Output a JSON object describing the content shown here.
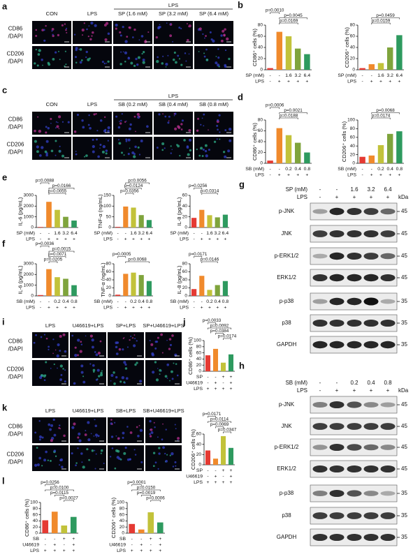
{
  "panel_labels": [
    "a",
    "b",
    "c",
    "d",
    "e",
    "f",
    "g",
    "h",
    "i",
    "j",
    "k",
    "l"
  ],
  "microscopy": [
    {
      "group": "LPS",
      "columns": [
        "CON",
        "LPS",
        "SP (1.6 mM)",
        "SP (3.2 mM)",
        "SP (6.4 mM)"
      ],
      "rows": [
        [
          "CD86",
          "/DAPI"
        ],
        [
          "CD206",
          "/DAPI"
        ]
      ]
    },
    {
      "group": "LPS",
      "columns": [
        "CON",
        "LPS",
        "SB (0.2 mM)",
        "SB (0.4 mM)",
        "SB (0.8 mM)"
      ],
      "rows": [
        [
          "CD86",
          "/DAPI"
        ],
        [
          "CD206",
          "/DAPI"
        ]
      ]
    },
    {
      "columns": [
        "LPS",
        "U46619+LPS",
        "SP+LPS",
        "SP+U46619+LPS"
      ],
      "rows": [
        [
          "CD86",
          "/DAPI"
        ],
        [
          "CD206",
          "/DAPI"
        ]
      ]
    },
    {
      "columns": [
        "LPS",
        "U46619+LPS",
        "SB+LPS",
        "SB+U46619+LPS"
      ],
      "rows": [
        [
          "CD86",
          "/DAPI"
        ],
        [
          "CD206",
          "/DAPI"
        ]
      ]
    }
  ],
  "blots": [
    {
      "treatments": [
        {
          "label": "SP (mM)",
          "values": [
            "-",
            "-",
            "1.6",
            "3.2",
            "6.4"
          ]
        },
        {
          "label": "LPS",
          "values": [
            "-",
            "+",
            "+",
            "+",
            "+"
          ]
        }
      ],
      "unit": "kDa",
      "rows": [
        {
          "label": "p-JNK",
          "marker": 45
        },
        {
          "label": "JNK",
          "marker": 45
        },
        {
          "label": "p-ERK1/2",
          "marker": 45
        },
        {
          "label": "ERK1/2",
          "marker": 45
        },
        {
          "label": "p-p38",
          "marker": 35
        },
        {
          "label": "p38",
          "marker": 35
        },
        {
          "label": "GAPDH",
          "marker": 35
        }
      ]
    },
    {
      "treatments": [
        {
          "label": "SB (mM)",
          "values": [
            "-",
            "-",
            "0.2",
            "0.4",
            "0.8"
          ]
        },
        {
          "label": "LPS",
          "values": [
            "-",
            "+",
            "+",
            "+",
            "+"
          ]
        }
      ],
      "unit": "kDa",
      "rows": [
        {
          "label": "p-JNK",
          "marker": 45
        },
        {
          "label": "JNK",
          "marker": 45
        },
        {
          "label": "p-ERK1/2",
          "marker": 45
        },
        {
          "label": "ERK1/2",
          "marker": 45
        },
        {
          "label": "p-p38",
          "marker": 35
        },
        {
          "label": "p38",
          "marker": 35
        },
        {
          "label": "GAPDH",
          "marker": 35
        }
      ]
    }
  ],
  "chart_data": [
    {
      "type": "bar",
      "ylabel": "CD86⁺ cells (%)",
      "ylim": [
        0,
        80
      ],
      "yticks": [
        0,
        20,
        40,
        60,
        80
      ],
      "values": [
        3,
        68,
        60,
        38,
        28
      ],
      "colors": [
        "#e53a33",
        "#f08a2c",
        "#c2c23a",
        "#7fa43c",
        "#2e9a5f"
      ],
      "treatments": [
        {
          "label": "SP (mM)",
          "values": [
            "-",
            "-",
            "1.6",
            "3.2",
            "6.4"
          ]
        },
        {
          "label": "LPS",
          "values": [
            "-",
            "+",
            "+",
            "+",
            "+"
          ]
        }
      ],
      "annotations": [
        "p=0.0010",
        "p=0.0045",
        "p=0.0169"
      ]
    },
    {
      "type": "bar",
      "ylabel": "CD206⁺ cells (%)",
      "ylim": [
        0,
        80
      ],
      "yticks": [
        0,
        20,
        40,
        60,
        80
      ],
      "values": [
        3,
        10,
        12,
        40,
        62
      ],
      "colors": [
        "#e53a33",
        "#f08a2c",
        "#c2c23a",
        "#7fa43c",
        "#2e9a5f"
      ],
      "treatments": [
        {
          "label": "SP (mM)",
          "values": [
            "-",
            "-",
            "1.6",
            "3.2",
            "6.4"
          ]
        },
        {
          "label": "LPS",
          "values": [
            "-",
            "+",
            "+",
            "+",
            "+"
          ]
        }
      ],
      "annotations": [
        "p=0.0459",
        "p=0.0159"
      ]
    },
    {
      "type": "bar",
      "ylabel": "CD86⁺ cells (%)",
      "ylim": [
        0,
        80
      ],
      "yticks": [
        0,
        20,
        40,
        60,
        80
      ],
      "values": [
        5,
        65,
        52,
        38,
        20
      ],
      "colors": [
        "#e53a33",
        "#f08a2c",
        "#c2c23a",
        "#7fa43c",
        "#2e9a5f"
      ],
      "treatments": [
        {
          "label": "SB (mM)",
          "values": [
            "-",
            "-",
            "0.2",
            "0.4",
            "0.8"
          ]
        },
        {
          "label": "LPS",
          "values": [
            "-",
            "+",
            "+",
            "+",
            "+"
          ]
        }
      ],
      "annotations": [
        "p=0.0006",
        "p=0.0021",
        "p=0.0188"
      ]
    },
    {
      "type": "bar",
      "ylabel": "CD206⁺ cells (%)",
      "ylim": [
        0,
        100
      ],
      "yticks": [
        0,
        20,
        40,
        60,
        80,
        100
      ],
      "values": [
        15,
        18,
        42,
        68,
        74
      ],
      "colors": [
        "#e53a33",
        "#f08a2c",
        "#c2c23a",
        "#7fa43c",
        "#2e9a5f"
      ],
      "treatments": [
        {
          "label": "SB (mM)",
          "values": [
            "-",
            "-",
            "0.2",
            "0.4",
            "0.8"
          ]
        },
        {
          "label": "LPS",
          "values": [
            "-",
            "+",
            "+",
            "+",
            "+"
          ]
        }
      ],
      "annotations": [
        "p=0.0068",
        "p=0.0174"
      ]
    },
    {
      "type": "bar",
      "ylabel": "IL-6 (pg/mL)",
      "ylim": [
        0,
        3000
      ],
      "yticks": [
        0,
        1000,
        2000,
        3000
      ],
      "values": [
        50,
        2400,
        1650,
        1000,
        650
      ],
      "colors": [
        "#e53a33",
        "#f08a2c",
        "#c2c23a",
        "#7fa43c",
        "#2e9a5f"
      ],
      "treatments": [
        {
          "label": "SP (mM)",
          "values": [
            "-",
            "-",
            "1.6",
            "3.2",
            "6.4"
          ]
        },
        {
          "label": "LPS",
          "values": [
            "-",
            "+",
            "+",
            "+",
            "+"
          ]
        }
      ],
      "annotations": [
        "p=0.0088",
        "p=0.0166",
        "p=0.0055"
      ]
    },
    {
      "type": "bar",
      "ylabel": "TNF-α (ng/mL)",
      "ylim": [
        0,
        150
      ],
      "yticks": [
        0,
        50,
        100,
        150
      ],
      "values": [
        3,
        98,
        93,
        58,
        35
      ],
      "colors": [
        "#e53a33",
        "#f08a2c",
        "#c2c23a",
        "#7fa43c",
        "#2e9a5f"
      ],
      "treatments": [
        {
          "label": "SP (mM)",
          "values": [
            "-",
            "-",
            "1.6",
            "3.2",
            "6.4"
          ]
        },
        {
          "label": "LPS",
          "values": [
            "-",
            "+",
            "+",
            "+",
            "+"
          ]
        }
      ],
      "annotations": [
        "p=0.0056",
        "p=0.0124",
        "p=0.0356"
      ]
    },
    {
      "type": "bar",
      "ylabel": "IL-8 (pg/mL)",
      "ylim": [
        0,
        60
      ],
      "yticks": [
        0,
        20,
        40,
        60
      ],
      "values": [
        18,
        33,
        23,
        19,
        24
      ],
      "colors": [
        "#e53a33",
        "#f08a2c",
        "#c2c23a",
        "#7fa43c",
        "#2e9a5f"
      ],
      "treatments": [
        {
          "label": "SP (mM)",
          "values": [
            "-",
            "-",
            "1.6",
            "3.2",
            "6.4"
          ]
        },
        {
          "label": "LPS",
          "values": [
            "-",
            "+",
            "+",
            "+",
            "+"
          ]
        }
      ],
      "annotations": [
        "p=0.0256",
        "p=0.0314"
      ]
    },
    {
      "type": "bar",
      "ylabel": "IL-6 (pg/mL)",
      "ylim": [
        0,
        3000
      ],
      "yticks": [
        0,
        1000,
        2000,
        3000
      ],
      "values": [
        80,
        2500,
        1750,
        1600,
        1000
      ],
      "colors": [
        "#e53a33",
        "#f08a2c",
        "#c2c23a",
        "#7fa43c",
        "#2e9a5f"
      ],
      "treatments": [
        {
          "label": "SB (mM)",
          "values": [
            "-",
            "-",
            "0.2",
            "0.4",
            "0.8"
          ]
        },
        {
          "label": "LPS",
          "values": [
            "-",
            "+",
            "+",
            "+",
            "+"
          ]
        }
      ],
      "annotations": [
        "p=0.0036",
        "p=0.0015",
        "p=0.0071",
        "p=0.0205"
      ]
    },
    {
      "type": "bar",
      "ylabel": "TNF-α (ng/mL)",
      "ylim": [
        0,
        80
      ],
      "yticks": [
        0,
        20,
        40,
        60,
        80
      ],
      "values": [
        3,
        55,
        58,
        52,
        37
      ],
      "colors": [
        "#e53a33",
        "#f08a2c",
        "#c2c23a",
        "#7fa43c",
        "#2e9a5f"
      ],
      "treatments": [
        {
          "label": "SB (mM)",
          "values": [
            "-",
            "-",
            "0.2",
            "0.4",
            "0.8"
          ]
        },
        {
          "label": "LPS",
          "values": [
            "-",
            "+",
            "+",
            "+",
            "+"
          ]
        }
      ],
      "annotations": [
        "p=0.0005",
        "p=0.0068"
      ]
    },
    {
      "type": "bar",
      "ylabel": "IL-8 (pg/mL)",
      "ylim": [
        0,
        80
      ],
      "yticks": [
        0,
        20,
        40,
        60,
        80
      ],
      "values": [
        17,
        50,
        15,
        27,
        37
      ],
      "colors": [
        "#e53a33",
        "#f08a2c",
        "#c2c23a",
        "#7fa43c",
        "#2e9a5f"
      ],
      "treatments": [
        {
          "label": "SB (mM)",
          "values": [
            "-",
            "-",
            "0.2",
            "0.4",
            "0.8"
          ]
        },
        {
          "label": "LPS",
          "values": [
            "-",
            "+",
            "+",
            "+",
            "+"
          ]
        }
      ],
      "annotations": [
        "p=0.0171",
        "p=0.0146"
      ]
    },
    {
      "type": "bar",
      "ylabel": "CD86⁺ cells (%)",
      "ylim": [
        0,
        100
      ],
      "yticks": [
        0,
        20,
        40,
        60,
        80,
        100
      ],
      "values": [
        52,
        73,
        28,
        55
      ],
      "colors": [
        "#e53a33",
        "#f08a2c",
        "#c2c23a",
        "#2e9a5f"
      ],
      "treatments": [
        {
          "label": "SP",
          "values": [
            "-",
            "-",
            "+",
            "+"
          ]
        },
        {
          "label": "U46619",
          "values": [
            "-",
            "+",
            "-",
            "+"
          ]
        },
        {
          "label": "LPS",
          "values": [
            "+",
            "+",
            "+",
            "+"
          ]
        }
      ],
      "annotations": [
        "p=0.0033",
        "p=0.0092",
        "p=0.0384",
        "p=0.0174"
      ]
    },
    {
      "type": "bar",
      "ylabel": "CD206⁺ cells (%)",
      "ylim": [
        0,
        60
      ],
      "yticks": [
        0,
        20,
        40,
        60
      ],
      "values": [
        28,
        12,
        56,
        33
      ],
      "colors": [
        "#e53a33",
        "#f08a2c",
        "#c2c23a",
        "#2e9a5f"
      ],
      "treatments": [
        {
          "label": "SP",
          "values": [
            "-",
            "-",
            "+",
            "+"
          ]
        },
        {
          "label": "U46619",
          "values": [
            "-",
            "+",
            "-",
            "+"
          ]
        },
        {
          "label": "LPS",
          "values": [
            "+",
            "+",
            "+",
            "+"
          ]
        }
      ],
      "annotations": [
        "p=0.0171",
        "p=0.0114",
        "p=0.0069",
        "p=0.0347"
      ]
    },
    {
      "type": "bar",
      "ylabel": "CD86⁺ cells (%)",
      "ylim": [
        0,
        100
      ],
      "yticks": [
        0,
        20,
        40,
        60,
        80,
        100
      ],
      "values": [
        42,
        70,
        25,
        53
      ],
      "colors": [
        "#e53a33",
        "#f08a2c",
        "#c2c23a",
        "#2e9a5f"
      ],
      "treatments": [
        {
          "label": "SB",
          "values": [
            "-",
            "-",
            "+",
            "+"
          ]
        },
        {
          "label": "U46619",
          "values": [
            "-",
            "+",
            "-",
            "+"
          ]
        },
        {
          "label": "LPS",
          "values": [
            "+",
            "+",
            "+",
            "+"
          ]
        }
      ],
      "annotations": [
        "p=0.0256",
        "p=0.0100",
        "p=0.0115",
        "p=0.0027"
      ]
    },
    {
      "type": "bar",
      "ylabel": "CD206⁺ cells (%)",
      "ylim": [
        0,
        100
      ],
      "yticks": [
        0,
        20,
        40,
        60,
        80,
        100
      ],
      "values": [
        30,
        12,
        68,
        35
      ],
      "colors": [
        "#e53a33",
        "#f08a2c",
        "#c2c23a",
        "#2e9a5f"
      ],
      "treatments": [
        {
          "label": "SB",
          "values": [
            "-",
            "-",
            "+",
            "+"
          ]
        },
        {
          "label": "U46619",
          "values": [
            "-",
            "+",
            "-",
            "+"
          ]
        },
        {
          "label": "LPS",
          "values": [
            "+",
            "+",
            "+",
            "+"
          ]
        }
      ],
      "annotations": [
        "p=0.0001",
        "p=0.0150",
        "p=0.0019",
        "p=0.0006"
      ]
    }
  ]
}
